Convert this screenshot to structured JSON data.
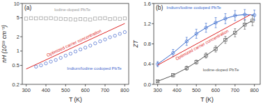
{
  "chart_data": [
    {
      "type": "scatter",
      "title": "(a)",
      "xlabel": "T (K)",
      "ylabel": "nH (10¹⁹ cm⁻³)",
      "log": "y",
      "xlim": [
        280,
        820
      ],
      "xticks": [
        300,
        400,
        500,
        600,
        700,
        800
      ],
      "ylim": [
        0.2,
        10
      ],
      "yticks": [
        0.2,
        0.5,
        1,
        2,
        5,
        10
      ],
      "series": [
        {
          "name": "Iodine-doped PbTe",
          "color": "#999999",
          "marker": "square",
          "line_style": "none",
          "x": [
            300,
            325,
            350,
            375,
            400,
            425,
            450,
            475,
            500,
            525,
            550,
            575,
            600,
            625,
            650,
            675,
            700,
            725,
            750,
            775,
            800
          ],
          "values": [
            4.8,
            4.9,
            4.85,
            4.9,
            4.85,
            4.9,
            4.8,
            4.75,
            4.7,
            4.65,
            4.6,
            4.7,
            4.65,
            4.6,
            4.8,
            4.85,
            4.9,
            4.7,
            4.8,
            4.75,
            4.85
          ]
        },
        {
          "name": "Indium/Iodine codoped PbTe",
          "color": "#4466cc",
          "marker": "circle",
          "line_style": "none",
          "x": [
            350,
            375,
            400,
            425,
            450,
            475,
            500,
            525,
            550,
            575,
            600,
            625,
            650,
            675,
            700,
            725,
            750,
            775,
            800
          ],
          "values": [
            0.47,
            0.5,
            0.55,
            0.6,
            0.65,
            0.72,
            0.8,
            0.88,
            0.98,
            1.08,
            1.18,
            1.3,
            1.45,
            1.6,
            1.75,
            1.95,
            2.1,
            2.3,
            2.5
          ]
        },
        {
          "name": "Optimized carrier concentration",
          "type": "line",
          "color": "#dd2222",
          "marker": "none",
          "line_style": "solid",
          "x": [
            300,
            800
          ],
          "values": [
            0.42,
            3.8
          ]
        }
      ]
    },
    {
      "type": "line",
      "title": "(b)",
      "xlabel": "T (K)",
      "ylabel": "ZT",
      "xlim": [
        280,
        830
      ],
      "xticks": [
        300,
        400,
        500,
        600,
        700,
        800
      ],
      "ylim": [
        0.0,
        1.6
      ],
      "yticks": [
        {
          "value": 0.0,
          "label": "0.0"
        },
        0.4,
        0.8,
        1.2,
        1.6
      ],
      "series": [
        {
          "name": "Indium/Iodine codoped PbTe",
          "color": "#3366cc",
          "marker": "circle",
          "line_style": "solid",
          "x": [
            300,
            380,
            450,
            500,
            550,
            600,
            650,
            700,
            750,
            800
          ],
          "values": [
            0.4,
            0.62,
            0.85,
            1.0,
            1.12,
            1.22,
            1.3,
            1.36,
            1.38,
            1.37
          ],
          "errors": [
            0.05,
            0.07,
            0.08,
            0.09,
            0.09,
            0.1,
            0.1,
            0.1,
            0.1,
            0.1
          ]
        },
        {
          "name": "Optimized carrier concentration",
          "color": "#dd2222",
          "marker": "none",
          "line_style": "solid",
          "x": [
            300,
            780
          ],
          "values": [
            0.38,
            1.38
          ]
        },
        {
          "name": "Iodine-doped PbTe",
          "color": "#555555",
          "marker": "square",
          "line_style": "solid",
          "x": [
            300,
            380,
            450,
            500,
            550,
            600,
            650,
            700,
            750,
            790
          ],
          "values": [
            0.06,
            0.18,
            0.32,
            0.44,
            0.57,
            0.7,
            0.88,
            1.02,
            1.18,
            1.26
          ],
          "errors": [
            0.02,
            0.03,
            0.04,
            0.04,
            0.05,
            0.06,
            0.07,
            0.08,
            0.09,
            0.1
          ]
        }
      ]
    }
  ]
}
